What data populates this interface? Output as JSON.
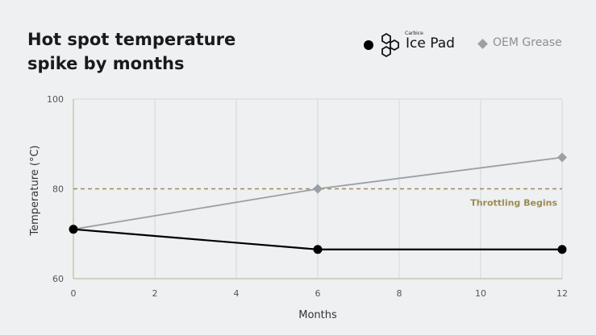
{
  "title": "Hot spot temperature\nspike by months",
  "legend": {
    "series1_brand_small": "Carbice",
    "series1_brand_name": "Ice Pad",
    "series2_label": "OEM Grease"
  },
  "chart_data": {
    "type": "line",
    "title": "Hot spot temperature spike by months",
    "xlabel": "Months",
    "ylabel": "Temperature (°C)",
    "xlim": [
      0,
      12
    ],
    "ylim": [
      60,
      100
    ],
    "xticks": [
      0,
      2,
      4,
      6,
      8,
      10,
      12
    ],
    "yticks": [
      60,
      80,
      100
    ],
    "grid": true,
    "legend_position": "top-right",
    "series": [
      {
        "name": "Carbice Ice Pad",
        "color": "#000000",
        "marker": "circle",
        "x": [
          0,
          6,
          12
        ],
        "y": [
          71,
          66.5,
          66.5
        ]
      },
      {
        "name": "OEM Grease",
        "color": "#9aa0a4",
        "marker": "diamond",
        "x": [
          0,
          6,
          12
        ],
        "y": [
          71,
          80,
          87
        ]
      }
    ],
    "reference_line": {
      "y": 80,
      "label": "Throttling Begins",
      "color": "#9c8a52",
      "style": "dashed"
    }
  }
}
